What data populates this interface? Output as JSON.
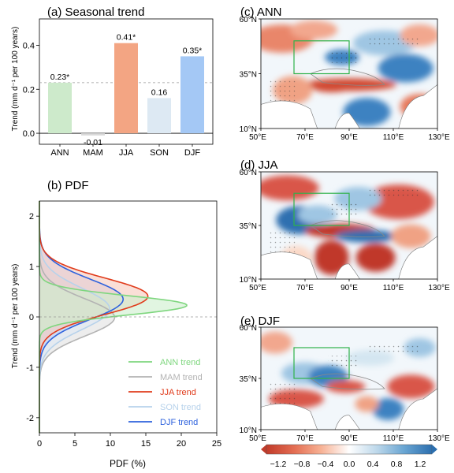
{
  "chart_data": [
    {
      "panel": "a",
      "type": "bar",
      "title": "(a) Seasonal trend",
      "ylabel": "Trend (mm d⁻¹ per 100 years)",
      "categories": [
        "ANN",
        "MAM",
        "JJA",
        "SON",
        "DJF"
      ],
      "values": [
        0.23,
        -0.01,
        0.41,
        0.16,
        0.35
      ],
      "value_labels": [
        "0.23*",
        "-0.01",
        "0.41*",
        "0.16",
        "0.35*"
      ],
      "colors": [
        "#cdeacb",
        "#d9d9d9",
        "#f3a583",
        "#dde9f3",
        "#a4c8f5"
      ],
      "ylim": [
        -0.05,
        0.52
      ],
      "yticks": [
        0.0,
        0.2,
        0.4
      ],
      "ytick_labels": [
        "0.0",
        "0.2",
        "0.4"
      ],
      "reference_line": 0.23
    },
    {
      "panel": "b",
      "type": "area",
      "orientation": "horizontal",
      "title": "(b) PDF",
      "xlabel": "PDF (%)",
      "ylabel": "Trend (mm d⁻¹ per 100 years)",
      "xlim": [
        0,
        25
      ],
      "ylim": [
        -2.3,
        2.3
      ],
      "xticks": [
        0,
        5,
        10,
        15,
        20,
        25
      ],
      "yticks": [
        -2,
        -1,
        0,
        1,
        2
      ],
      "legend_position": "lower-right",
      "series": [
        {
          "name": "ANN trend",
          "mean": 0.23,
          "std": 0.19,
          "peak": 20.8,
          "color": "#7ed67e",
          "fill": "#cdeecd"
        },
        {
          "name": "MAM trend",
          "mean": -0.01,
          "std": 0.37,
          "peak": 10.6,
          "color": "#b3b3b3",
          "fill": "#e1e1e1"
        },
        {
          "name": "JJA trend",
          "mean": 0.41,
          "std": 0.36,
          "peak": 15.3,
          "color": "#e03b1b",
          "fill": "#f6cabc"
        },
        {
          "name": "SON trend",
          "mean": 0.16,
          "std": 0.41,
          "peak": 9.9,
          "color": "#b7d2eb",
          "fill": "#dde8f3"
        },
        {
          "name": "DJF trend",
          "mean": 0.35,
          "std": 0.4,
          "peak": 11.8,
          "color": "#2e62dd",
          "fill": "#c3d2f5"
        }
      ]
    },
    {
      "panel": "c",
      "type": "heatmap",
      "title": "(c) ANN",
      "lat_ticks": [
        "10°N",
        "35°N",
        "60°N"
      ],
      "lon_ticks": [
        "50°E",
        "70°E",
        "90°E",
        "110°E",
        "130°E"
      ],
      "box": {
        "lon": [
          65,
          90
        ],
        "lat": [
          35,
          50
        ]
      }
    },
    {
      "panel": "d",
      "type": "heatmap",
      "title": "(d) JJA",
      "lat_ticks": [
        "10°N",
        "35°N",
        "60°N"
      ],
      "lon_ticks": [
        "50°E",
        "70°E",
        "90°E",
        "110°E",
        "130°E"
      ],
      "box": {
        "lon": [
          65,
          90
        ],
        "lat": [
          35,
          50
        ]
      }
    },
    {
      "panel": "e",
      "type": "heatmap",
      "title": "(e) DJF",
      "lat_ticks": [
        "10°N",
        "35°N",
        "60°N"
      ],
      "lon_ticks": [
        "50°E",
        "70°E",
        "90°E",
        "110°E",
        "130°E"
      ],
      "box": {
        "lon": [
          65,
          90
        ],
        "lat": [
          35,
          50
        ]
      }
    },
    {
      "panel": "colorbar",
      "type": "colorbar",
      "ticks": [
        "−1.2",
        "−0.8",
        "−0.4",
        "0.0",
        "0.4",
        "0.8",
        "1.2"
      ],
      "range": [
        -1.2,
        1.2
      ],
      "colors": [
        "#c0392b",
        "#e06b50",
        "#f4a787",
        "#fbd9c8",
        "#ffffff",
        "#d4e6f1",
        "#9cc3e0",
        "#5a9bcc",
        "#2f73b0"
      ]
    }
  ]
}
